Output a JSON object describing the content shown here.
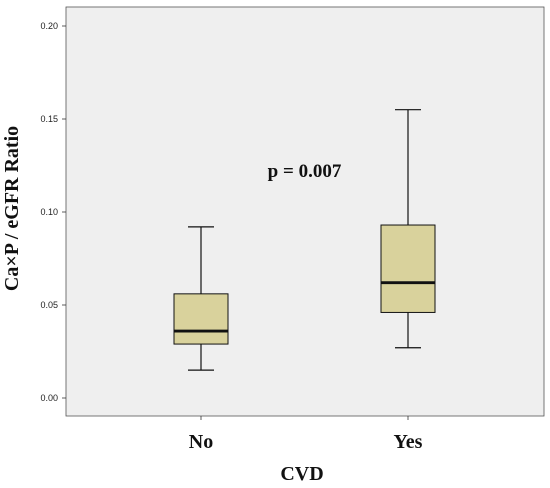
{
  "chart_data": {
    "type": "box",
    "xlabel": "CVD",
    "ylabel": "Ca×P / eGFR Ratio",
    "ylim": [
      0.0,
      0.2
    ],
    "yticks": [
      "0.00",
      "0.05",
      "0.10",
      "0.15",
      "0.20"
    ],
    "grid": false,
    "categories": [
      "No",
      "Yes"
    ],
    "boxes": [
      {
        "category": "No",
        "whisker_low": 0.015,
        "q1": 0.029,
        "median": 0.036,
        "q3": 0.056,
        "whisker_high": 0.092
      },
      {
        "category": "Yes",
        "whisker_low": 0.027,
        "q1": 0.046,
        "median": 0.062,
        "q3": 0.093,
        "whisker_high": 0.155
      }
    ],
    "annotation": {
      "text": "p = 0.007",
      "x_data": 1.5,
      "y_data": 0.122
    },
    "colors": {
      "plot_bg": "#EFEFEF",
      "box_fill": "#D9D29C",
      "stroke": "#111111"
    }
  }
}
